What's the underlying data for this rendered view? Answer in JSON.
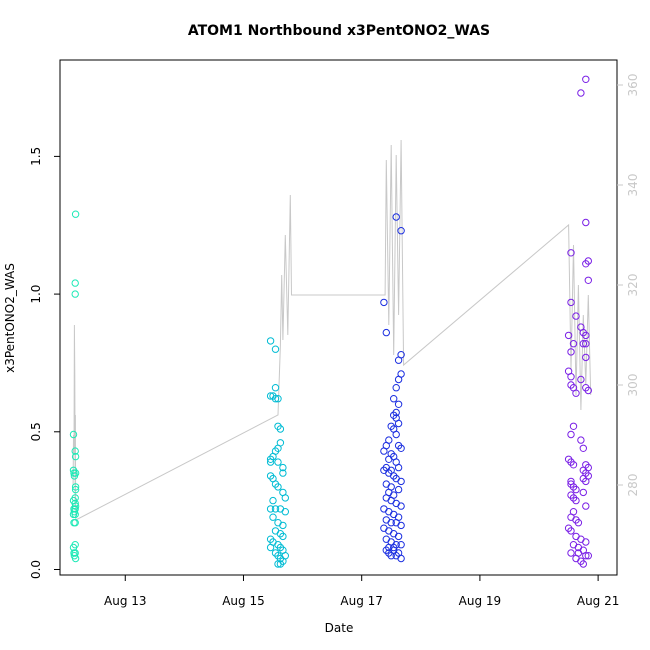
{
  "chart_data": {
    "type": "scatter",
    "title": "ATOM1 Northbound x3PentONO2_WAS",
    "xlabel": "Date",
    "ylabel": "x3PentONO2_WAS",
    "x_ticks": [
      "Aug 13",
      "Aug 15",
      "Aug 17",
      "Aug 19",
      "Aug 21"
    ],
    "y_ticks": [
      "0.0",
      "0.5",
      "1.0",
      "1.5"
    ],
    "y2_ticks": [
      "280",
      "300",
      "320",
      "340",
      "360"
    ],
    "xlim": [
      "2016-08-11 21:30",
      "2016-08-21 07:40"
    ],
    "ylim": [
      -0.02,
      1.85
    ],
    "y2lim": [
      262,
      365
    ],
    "grid": false,
    "colors": {
      "axis": "#000000",
      "secondary_axis": "#c8c8c8",
      "line": "#c8c8c8",
      "flight1": "#1de9b6",
      "flight2": "#00bcd4",
      "flight3": "#1a2ee0",
      "flight4": "#7a20e6"
    },
    "series": [
      {
        "color_key": "flight1",
        "points": [
          [
            "2016-08-12 03:00",
            0.49
          ],
          [
            "2016-08-12 03:00",
            0.36
          ],
          [
            "2016-08-12 03:10",
            0.35
          ],
          [
            "2016-08-12 03:00",
            0.25
          ],
          [
            "2016-08-12 03:10",
            0.22
          ],
          [
            "2016-08-12 03:20",
            0.21
          ],
          [
            "2016-08-12 03:00",
            0.2
          ],
          [
            "2016-08-12 03:10",
            0.17
          ],
          [
            "2016-08-12 03:00",
            0.08
          ],
          [
            "2016-08-12 03:10",
            0.06
          ],
          [
            "2016-08-12 03:20",
            0.05
          ],
          [
            "2016-08-12 03:40",
            0.43
          ],
          [
            "2016-08-12 03:50",
            0.41
          ],
          [
            "2016-08-12 03:50",
            0.35
          ],
          [
            "2016-08-12 03:50",
            0.29
          ],
          [
            "2016-08-12 03:40",
            0.24
          ],
          [
            "2016-08-12 03:40",
            0.22
          ],
          [
            "2016-08-12 03:50",
            0.23
          ],
          [
            "2016-08-12 03:40",
            0.2
          ],
          [
            "2016-08-12 03:40",
            0.26
          ],
          [
            "2016-08-12 03:40",
            0.17
          ],
          [
            "2016-08-12 03:40",
            0.09
          ],
          [
            "2016-08-12 03:40",
            0.06
          ],
          [
            "2016-08-12 03:50",
            0.04
          ],
          [
            "2016-08-12 03:40",
            1.04
          ],
          [
            "2016-08-12 03:40",
            1.0
          ],
          [
            "2016-08-12 03:50",
            1.29
          ],
          [
            "2016-08-12 03:50",
            0.3
          ],
          [
            "2016-08-12 03:20",
            0.34
          ]
        ]
      },
      {
        "color_key": "flight2",
        "points": [
          [
            "2016-08-15 11:00",
            0.83
          ],
          [
            "2016-08-15 13:00",
            0.8
          ],
          [
            "2016-08-15 13:00",
            0.66
          ],
          [
            "2016-08-15 11:00",
            0.63
          ],
          [
            "2016-08-15 12:00",
            0.63
          ],
          [
            "2016-08-15 13:00",
            0.62
          ],
          [
            "2016-08-15 14:00",
            0.62
          ],
          [
            "2016-08-15 14:00",
            0.52
          ],
          [
            "2016-08-15 15:00",
            0.51
          ],
          [
            "2016-08-15 15:00",
            0.46
          ],
          [
            "2016-08-15 14:00",
            0.44
          ],
          [
            "2016-08-15 13:00",
            0.43
          ],
          [
            "2016-08-15 12:00",
            0.41
          ],
          [
            "2016-08-15 11:00",
            0.4
          ],
          [
            "2016-08-15 11:00",
            0.39
          ],
          [
            "2016-08-15 14:00",
            0.39
          ],
          [
            "2016-08-15 16:00",
            0.37
          ],
          [
            "2016-08-15 16:00",
            0.35
          ],
          [
            "2016-08-15 11:00",
            0.34
          ],
          [
            "2016-08-15 12:00",
            0.33
          ],
          [
            "2016-08-15 13:00",
            0.31
          ],
          [
            "2016-08-15 14:00",
            0.3
          ],
          [
            "2016-08-15 16:00",
            0.28
          ],
          [
            "2016-08-15 17:00",
            0.26
          ],
          [
            "2016-08-15 12:00",
            0.25
          ],
          [
            "2016-08-15 11:00",
            0.22
          ],
          [
            "2016-08-15 13:00",
            0.22
          ],
          [
            "2016-08-15 15:00",
            0.22
          ],
          [
            "2016-08-15 17:00",
            0.21
          ],
          [
            "2016-08-15 12:00",
            0.19
          ],
          [
            "2016-08-15 14:00",
            0.17
          ],
          [
            "2016-08-15 16:00",
            0.16
          ],
          [
            "2016-08-15 13:00",
            0.14
          ],
          [
            "2016-08-15 15:00",
            0.13
          ],
          [
            "2016-08-15 16:00",
            0.12
          ],
          [
            "2016-08-15 11:00",
            0.11
          ],
          [
            "2016-08-15 12:00",
            0.1
          ],
          [
            "2016-08-15 14:00",
            0.09
          ],
          [
            "2016-08-15 15:00",
            0.08
          ],
          [
            "2016-08-15 11:00",
            0.08
          ],
          [
            "2016-08-15 16:00",
            0.07
          ],
          [
            "2016-08-15 13:00",
            0.06
          ],
          [
            "2016-08-15 14:00",
            0.05
          ],
          [
            "2016-08-15 17:00",
            0.05
          ],
          [
            "2016-08-15 15:00",
            0.04
          ],
          [
            "2016-08-15 16:00",
            0.03
          ],
          [
            "2016-08-15 14:00",
            0.02
          ],
          [
            "2016-08-15 15:00",
            0.02
          ]
        ]
      },
      {
        "color_key": "flight3",
        "points": [
          [
            "2016-08-17 09:00",
            0.97
          ],
          [
            "2016-08-17 10:00",
            0.86
          ],
          [
            "2016-08-17 14:00",
            1.28
          ],
          [
            "2016-08-17 16:00",
            1.23
          ],
          [
            "2016-08-17 16:00",
            0.78
          ],
          [
            "2016-08-17 15:00",
            0.76
          ],
          [
            "2016-08-17 16:00",
            0.71
          ],
          [
            "2016-08-17 15:00",
            0.69
          ],
          [
            "2016-08-17 14:00",
            0.66
          ],
          [
            "2016-08-17 13:00",
            0.62
          ],
          [
            "2016-08-17 15:00",
            0.6
          ],
          [
            "2016-08-17 14:00",
            0.57
          ],
          [
            "2016-08-17 13:00",
            0.56
          ],
          [
            "2016-08-17 14:00",
            0.55
          ],
          [
            "2016-08-17 15:00",
            0.53
          ],
          [
            "2016-08-17 12:00",
            0.52
          ],
          [
            "2016-08-17 13:00",
            0.51
          ],
          [
            "2016-08-17 14:00",
            0.49
          ],
          [
            "2016-08-17 11:00",
            0.47
          ],
          [
            "2016-08-17 10:00",
            0.45
          ],
          [
            "2016-08-17 15:00",
            0.45
          ],
          [
            "2016-08-17 16:00",
            0.44
          ],
          [
            "2016-08-17 09:00",
            0.43
          ],
          [
            "2016-08-17 12:00",
            0.42
          ],
          [
            "2016-08-17 13:00",
            0.41
          ],
          [
            "2016-08-17 11:00",
            0.4
          ],
          [
            "2016-08-17 14:00",
            0.39
          ],
          [
            "2016-08-17 15:00",
            0.37
          ],
          [
            "2016-08-17 10:00",
            0.37
          ],
          [
            "2016-08-17 12:00",
            0.36
          ],
          [
            "2016-08-17 09:00",
            0.36
          ],
          [
            "2016-08-17 11:00",
            0.35
          ],
          [
            "2016-08-17 13:00",
            0.34
          ],
          [
            "2016-08-17 14:00",
            0.33
          ],
          [
            "2016-08-17 16:00",
            0.32
          ],
          [
            "2016-08-17 10:00",
            0.31
          ],
          [
            "2016-08-17 12:00",
            0.3
          ],
          [
            "2016-08-17 15:00",
            0.29
          ],
          [
            "2016-08-17 11:00",
            0.28
          ],
          [
            "2016-08-17 13:00",
            0.27
          ],
          [
            "2016-08-17 10:00",
            0.26
          ],
          [
            "2016-08-17 12:00",
            0.25
          ],
          [
            "2016-08-17 14:00",
            0.24
          ],
          [
            "2016-08-17 16:00",
            0.23
          ],
          [
            "2016-08-17 09:00",
            0.22
          ],
          [
            "2016-08-17 11:00",
            0.21
          ],
          [
            "2016-08-17 13:00",
            0.2
          ],
          [
            "2016-08-17 15:00",
            0.19
          ],
          [
            "2016-08-17 10:00",
            0.18
          ],
          [
            "2016-08-17 12:00",
            0.17
          ],
          [
            "2016-08-17 14:00",
            0.17
          ],
          [
            "2016-08-17 16:00",
            0.16
          ],
          [
            "2016-08-17 09:00",
            0.15
          ],
          [
            "2016-08-17 11:00",
            0.14
          ],
          [
            "2016-08-17 13:00",
            0.13
          ],
          [
            "2016-08-17 15:00",
            0.12
          ],
          [
            "2016-08-17 10:00",
            0.11
          ],
          [
            "2016-08-17 12:00",
            0.1
          ],
          [
            "2016-08-17 14:00",
            0.09
          ],
          [
            "2016-08-17 16:00",
            0.09
          ],
          [
            "2016-08-17 11:00",
            0.08
          ],
          [
            "2016-08-17 13:00",
            0.07
          ],
          [
            "2016-08-17 10:00",
            0.07
          ],
          [
            "2016-08-17 15:00",
            0.06
          ],
          [
            "2016-08-17 12:00",
            0.05
          ],
          [
            "2016-08-17 14:00",
            0.05
          ],
          [
            "2016-08-17 16:00",
            0.04
          ],
          [
            "2016-08-17 11:00",
            0.06
          ],
          [
            "2016-08-17 13:00",
            0.08
          ]
        ]
      },
      {
        "color_key": "flight4",
        "points": [
          [
            "2016-08-20 17:00",
            1.73
          ],
          [
            "2016-08-20 19:00",
            1.78
          ],
          [
            "2016-08-20 19:00",
            1.26
          ],
          [
            "2016-08-20 13:00",
            1.15
          ],
          [
            "2016-08-20 20:00",
            1.12
          ],
          [
            "2016-08-20 19:00",
            1.11
          ],
          [
            "2016-08-20 20:00",
            1.05
          ],
          [
            "2016-08-20 13:00",
            0.97
          ],
          [
            "2016-08-20 15:00",
            0.92
          ],
          [
            "2016-08-20 17:00",
            0.88
          ],
          [
            "2016-08-20 18:00",
            0.86
          ],
          [
            "2016-08-20 12:00",
            0.85
          ],
          [
            "2016-08-20 19:00",
            0.85
          ],
          [
            "2016-08-20 14:00",
            0.82
          ],
          [
            "2016-08-20 18:00",
            0.82
          ],
          [
            "2016-08-20 19:00",
            0.82
          ],
          [
            "2016-08-20 19:00",
            0.77
          ],
          [
            "2016-08-20 13:00",
            0.79
          ],
          [
            "2016-08-20 12:00",
            0.72
          ],
          [
            "2016-08-20 13:00",
            0.7
          ],
          [
            "2016-08-20 13:00",
            0.67
          ],
          [
            "2016-08-20 14:00",
            0.66
          ],
          [
            "2016-08-20 15:00",
            0.64
          ],
          [
            "2016-08-20 17:00",
            0.69
          ],
          [
            "2016-08-20 19:00",
            0.66
          ],
          [
            "2016-08-20 20:00",
            0.65
          ],
          [
            "2016-08-20 14:00",
            0.52
          ],
          [
            "2016-08-20 13:00",
            0.49
          ],
          [
            "2016-08-20 17:00",
            0.47
          ],
          [
            "2016-08-20 18:00",
            0.44
          ],
          [
            "2016-08-20 12:00",
            0.4
          ],
          [
            "2016-08-20 13:00",
            0.39
          ],
          [
            "2016-08-20 14:00",
            0.38
          ],
          [
            "2016-08-20 19:00",
            0.38
          ],
          [
            "2016-08-20 20:00",
            0.37
          ],
          [
            "2016-08-20 18:00",
            0.36
          ],
          [
            "2016-08-20 19:00",
            0.35
          ],
          [
            "2016-08-20 20:00",
            0.34
          ],
          [
            "2016-08-20 13:00",
            0.32
          ],
          [
            "2016-08-20 18:00",
            0.33
          ],
          [
            "2016-08-20 19:00",
            0.32
          ],
          [
            "2016-08-20 13:00",
            0.31
          ],
          [
            "2016-08-20 14:00",
            0.3
          ],
          [
            "2016-08-20 15:00",
            0.29
          ],
          [
            "2016-08-20 18:00",
            0.28
          ],
          [
            "2016-08-20 13:00",
            0.27
          ],
          [
            "2016-08-20 14:00",
            0.26
          ],
          [
            "2016-08-20 15:00",
            0.25
          ],
          [
            "2016-08-20 19:00",
            0.23
          ],
          [
            "2016-08-20 14:00",
            0.21
          ],
          [
            "2016-08-20 13:00",
            0.19
          ],
          [
            "2016-08-20 15:00",
            0.18
          ],
          [
            "2016-08-20 16:00",
            0.17
          ],
          [
            "2016-08-20 12:00",
            0.15
          ],
          [
            "2016-08-20 13:00",
            0.14
          ],
          [
            "2016-08-20 15:00",
            0.12
          ],
          [
            "2016-08-20 17:00",
            0.11
          ],
          [
            "2016-08-20 19:00",
            0.1
          ],
          [
            "2016-08-20 14:00",
            0.09
          ],
          [
            "2016-08-20 16:00",
            0.08
          ],
          [
            "2016-08-20 18:00",
            0.07
          ],
          [
            "2016-08-20 13:00",
            0.06
          ],
          [
            "2016-08-20 20:00",
            0.05
          ],
          [
            "2016-08-20 15:00",
            0.04
          ],
          [
            "2016-08-20 17:00",
            0.03
          ],
          [
            "2016-08-20 18:00",
            0.02
          ],
          [
            "2016-08-20 19:00",
            0.05
          ],
          [
            "2016-08-20 16:00",
            0.06
          ]
        ]
      }
    ],
    "line_series": [
      {
        "axis": "right",
        "color_key": "line",
        "points": [
          [
            "2016-08-12 02:50",
            280
          ],
          [
            "2016-08-12 03:00",
            290
          ],
          [
            "2016-08-12 03:10",
            286
          ],
          [
            "2016-08-12 03:20",
            312
          ],
          [
            "2016-08-12 03:30",
            302
          ],
          [
            "2016-08-12 03:35",
            290
          ],
          [
            "2016-08-12 03:40",
            276
          ],
          [
            "2016-08-12 03:45",
            294
          ],
          [
            "2016-08-12 03:50",
            278
          ],
          [
            "2016-08-12 03:55",
            273
          ],
          [
            "2016-08-15 14:00",
            294
          ],
          [
            "2016-08-15 15:00",
            308
          ],
          [
            "2016-08-15 15:30",
            322
          ],
          [
            "2016-08-15 16:00",
            309
          ],
          [
            "2016-08-15 17:00",
            330
          ],
          [
            "2016-08-15 18:00",
            310
          ],
          [
            "2016-08-15 19:00",
            338
          ],
          [
            "2016-08-15 19:30",
            318
          ],
          [
            "2016-08-17 09:30",
            318
          ],
          [
            "2016-08-17 10:00",
            345
          ],
          [
            "2016-08-17 11:00",
            312
          ],
          [
            "2016-08-17 12:00",
            348
          ],
          [
            "2016-08-17 13:00",
            306
          ],
          [
            "2016-08-17 14:00",
            346
          ],
          [
            "2016-08-17 15:00",
            314
          ],
          [
            "2016-08-17 16:00",
            349
          ],
          [
            "2016-08-17 17:00",
            304
          ],
          [
            "2016-08-20 12:00",
            332
          ],
          [
            "2016-08-20 13:00",
            303
          ],
          [
            "2016-08-20 14:00",
            328
          ],
          [
            "2016-08-20 15:00",
            298
          ],
          [
            "2016-08-20 16:00",
            320
          ],
          [
            "2016-08-20 17:00",
            295
          ],
          [
            "2016-08-20 18:00",
            314
          ],
          [
            "2016-08-20 19:00",
            300
          ],
          [
            "2016-08-20 20:00",
            318
          ],
          [
            "2016-08-20 21:00",
            298
          ]
        ]
      }
    ]
  }
}
